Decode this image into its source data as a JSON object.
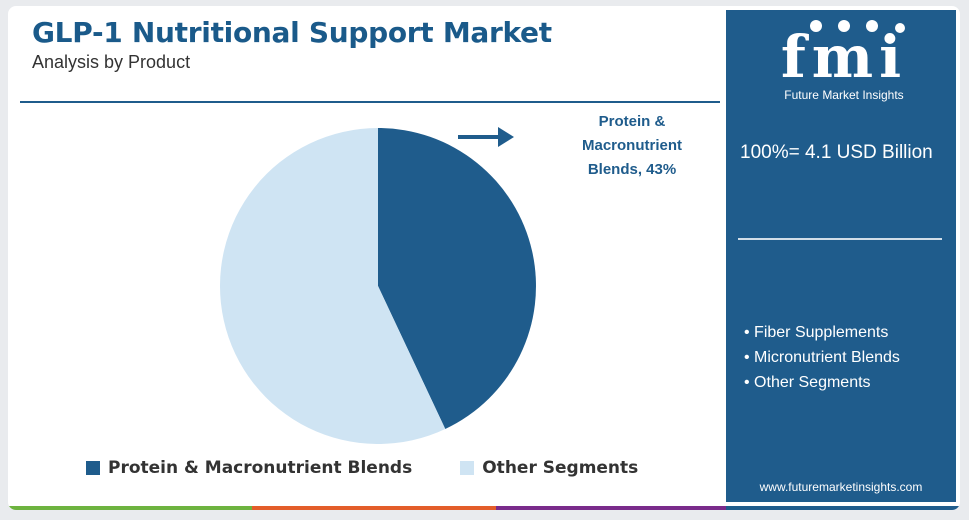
{
  "header": {
    "title": "GLP-1 Nutritional Support Market",
    "subtitle": "Analysis by Product"
  },
  "colors": {
    "primary": "#1f5c8c",
    "secondary": "#cfe4f3"
  },
  "chart_data": {
    "type": "pie",
    "series": [
      {
        "name": "Protein & Macronutrient Blends",
        "value": 43,
        "color": "#1f5c8c"
      },
      {
        "name": "Other Segments",
        "value": 57,
        "color": "#cfe4f3"
      }
    ],
    "callout": {
      "lines": [
        "Protein &",
        "Macronutrient",
        "Blends, 43%"
      ]
    },
    "legend": {
      "placement": "bottom",
      "items": [
        "Protein & Macronutrient Blends",
        "Other Segments"
      ]
    }
  },
  "sidebar": {
    "logo_text": "fmi",
    "logo_subtitle": "Future Market Insights",
    "total": "100%= 4.1 USD Billion",
    "other_segments": [
      "Fiber Supplements",
      "Micronutrient Blends",
      "Other Segments"
    ],
    "website": "www.futuremarketinsights.com"
  },
  "bottom_bar_colors": [
    "#6db33f",
    "#e35d2a",
    "#7a2b8b",
    "#1f5c8c"
  ]
}
